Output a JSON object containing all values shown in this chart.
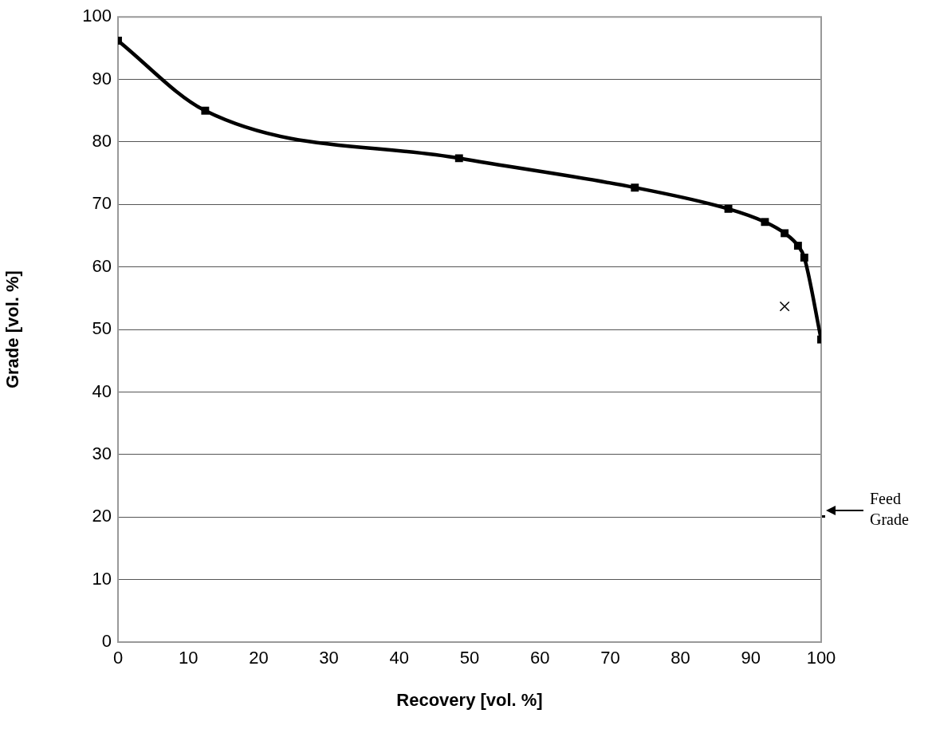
{
  "chart_data": {
    "type": "line",
    "xlabel": "Recovery [vol. %]",
    "ylabel": "Grade [vol. %]",
    "series": [
      {
        "color": "#000000",
        "marker": "square",
        "line_style": "solid",
        "x": [
          0,
          12.4,
          48.5,
          73.5,
          86.8,
          92,
          94.8,
          96.7,
          97.6,
          100
        ],
        "values": [
          96.2,
          85,
          77.4,
          72.7,
          69.3,
          67.2,
          65.4,
          63.4,
          61.5,
          48.4
        ]
      },
      {
        "type": "scatter",
        "color": "#000000",
        "marker": "cross",
        "x": [
          94.8
        ],
        "values": [
          53.7
        ]
      }
    ],
    "xlim": [
      0,
      100
    ],
    "xticks": [
      0,
      10,
      20,
      30,
      40,
      50,
      60,
      70,
      80,
      90,
      100
    ],
    "ylim": [
      0,
      100
    ],
    "yticks": [
      0,
      10,
      20,
      30,
      40,
      50,
      60,
      70,
      80,
      90,
      100
    ],
    "grid": "y",
    "legend": false,
    "annotations": [
      "Feed Grade"
    ]
  }
}
